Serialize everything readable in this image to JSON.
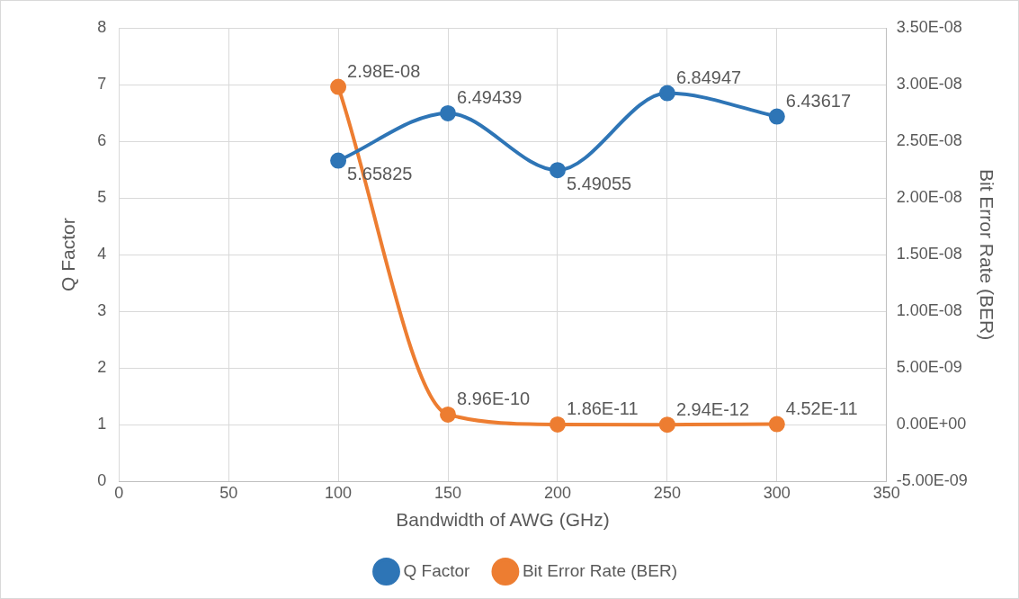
{
  "chart_data": {
    "type": "line",
    "xlabel": "Bandwidth of AWG (GHz)",
    "ylabel": "Q Factor",
    "y2label": "Bit Error Rate (BER)",
    "x": [
      100,
      150,
      200,
      250,
      300
    ],
    "series": [
      {
        "name": "Q Factor",
        "color": "#2e75b6",
        "values": [
          5.65825,
          6.49439,
          5.49055,
          6.84947,
          6.43617
        ],
        "value_labels": [
          "5.65825",
          "6.49439",
          "5.49055",
          "6.84947",
          "6.43617"
        ]
      },
      {
        "name": "Bit Error Rate (BER)",
        "color": "#ed7d31",
        "axis": "y2",
        "values": [
          2.98e-08,
          8.96e-10,
          1.86e-11,
          2.94e-12,
          4.52e-11
        ],
        "value_labels": [
          "2.98E-08",
          "8.96E-10",
          "1.86E-11",
          "2.94E-12",
          "4.52E-11"
        ]
      }
    ],
    "xlim": [
      0,
      350
    ],
    "xticks": [
      0,
      50,
      100,
      150,
      200,
      250,
      300,
      350
    ],
    "ylim": [
      0,
      8
    ],
    "yticks": [
      0,
      1,
      2,
      3,
      4,
      5,
      6,
      7,
      8
    ],
    "y2lim": [
      -5e-09,
      3.5e-08
    ],
    "y2ticks": [
      {
        "value": -5e-09,
        "label": "-5.00E-09"
      },
      {
        "value": 0,
        "label": "0.00E+00"
      },
      {
        "value": 5e-09,
        "label": "5.00E-09"
      },
      {
        "value": 1e-08,
        "label": "1.00E-08"
      },
      {
        "value": 1.5e-08,
        "label": "1.50E-08"
      },
      {
        "value": 2e-08,
        "label": "2.00E-08"
      },
      {
        "value": 2.5e-08,
        "label": "2.50E-08"
      },
      {
        "value": 3e-08,
        "label": "3.00E-08"
      },
      {
        "value": 3.5e-08,
        "label": "3.50E-08"
      }
    ],
    "grid": true,
    "legend": "bottom",
    "marker": "circle",
    "line_style": "solid"
  }
}
